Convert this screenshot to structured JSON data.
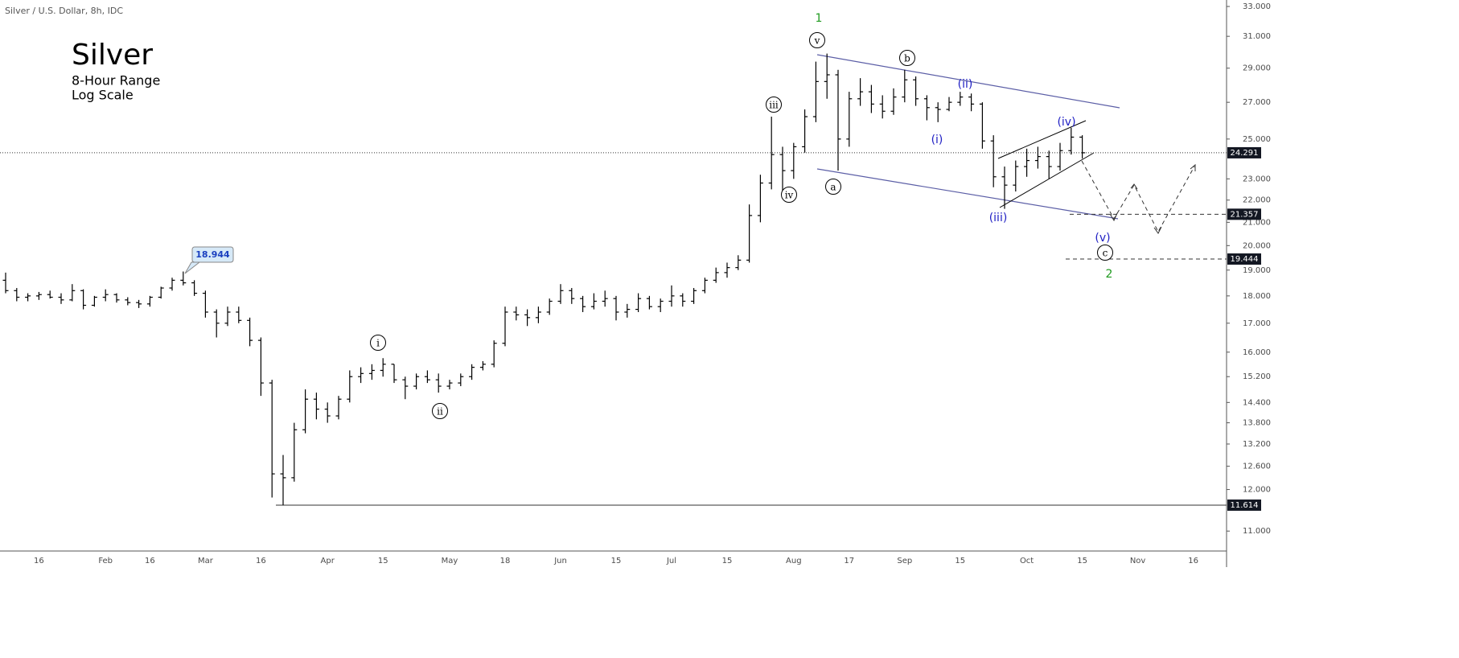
{
  "chart_data": {
    "type": "ohlc",
    "header": "Silver / U.S. Dollar, 8h, IDC",
    "title": "Silver",
    "subtitle": [
      "8-Hour Range",
      "Log Scale"
    ],
    "log_scale": true,
    "color": "#000000",
    "categories": [
      null,
      null,
      null,
      "16",
      null,
      null,
      null,
      null,
      null,
      "Feb",
      null,
      null,
      null,
      "16",
      null,
      null,
      null,
      null,
      "Mar",
      null,
      null,
      null,
      null,
      "16",
      null,
      null,
      null,
      null,
      null,
      "Apr",
      null,
      null,
      null,
      null,
      "15",
      null,
      null,
      null,
      null,
      null,
      "May",
      null,
      null,
      null,
      null,
      "18",
      null,
      null,
      null,
      null,
      "Jun",
      null,
      null,
      null,
      null,
      "15",
      null,
      null,
      null,
      null,
      "Jul",
      null,
      null,
      null,
      null,
      "15",
      null,
      null,
      null,
      null,
      null,
      "Aug",
      null,
      null,
      null,
      null,
      "17",
      null,
      null,
      null,
      null,
      "Sep",
      null,
      null,
      null,
      null,
      "15",
      null,
      null,
      null,
      null,
      null,
      "Oct",
      null,
      null,
      null,
      null,
      "15",
      null,
      null,
      null,
      null,
      "Nov",
      null,
      null,
      null,
      null,
      "16",
      null,
      null
    ],
    "open": [
      18.6,
      18.2,
      17.95,
      18.0,
      18.05,
      17.95,
      17.85,
      18.2,
      17.65,
      17.95,
      18.05,
      17.85,
      17.75,
      17.7,
      17.95,
      18.3,
      18.6,
      18.5,
      18.1,
      17.4,
      17.0,
      17.4,
      17.1,
      16.4,
      15.0,
      12.4,
      12.3,
      13.6,
      14.5,
      14.2,
      14.0,
      14.5,
      15.2,
      15.3,
      15.4,
      15.6,
      15.1,
      14.9,
      15.2,
      15.1,
      14.9,
      15.0,
      15.2,
      15.5,
      15.6,
      16.3,
      17.4,
      17.3,
      17.2,
      17.4,
      17.8,
      18.2,
      17.9,
      17.6,
      17.8,
      17.9,
      17.4,
      17.5,
      17.9,
      17.6,
      17.8,
      18.0,
      17.8,
      18.2,
      18.6,
      18.9,
      19.1,
      19.4,
      21.3,
      22.8,
      24.2,
      23.4,
      24.6,
      26.2,
      28.2,
      28.6,
      25.0,
      27.2,
      27.6,
      26.9,
      26.5,
      27.3,
      28.3,
      27.2,
      26.7,
      26.6,
      27.0,
      27.3,
      26.9,
      24.9,
      23.1,
      22.7,
      23.6,
      23.9,
      24.1,
      23.6,
      24.4,
      25.1,
      null,
      null,
      null,
      null,
      null,
      null,
      null,
      null,
      null,
      null,
      null,
      null
    ],
    "high": [
      18.9,
      18.3,
      18.1,
      18.15,
      18.2,
      18.1,
      18.45,
      18.25,
      18.0,
      18.25,
      18.1,
      17.95,
      17.85,
      18.0,
      18.35,
      18.7,
      18.944,
      18.6,
      18.2,
      17.5,
      17.6,
      17.6,
      17.2,
      16.5,
      15.1,
      12.9,
      13.8,
      14.8,
      14.7,
      14.4,
      14.6,
      15.4,
      15.5,
      15.6,
      15.8,
      15.6,
      15.2,
      15.3,
      15.4,
      15.3,
      15.1,
      15.3,
      15.6,
      15.7,
      16.4,
      17.6,
      17.6,
      17.5,
      17.6,
      17.9,
      18.45,
      18.3,
      18.0,
      18.1,
      18.2,
      18.0,
      17.7,
      18.1,
      18.0,
      17.9,
      18.4,
      18.1,
      18.3,
      18.7,
      19.1,
      19.3,
      19.6,
      21.8,
      23.2,
      26.2,
      24.6,
      24.8,
      26.6,
      29.4,
      29.9,
      28.9,
      27.6,
      28.4,
      28.0,
      27.4,
      27.8,
      28.9,
      28.5,
      27.4,
      27.0,
      27.3,
      27.6,
      27.5,
      27.0,
      25.2,
      23.6,
      23.9,
      24.5,
      24.6,
      24.4,
      24.8,
      25.6,
      25.2,
      null,
      null,
      null,
      null,
      null,
      null,
      null,
      null,
      null,
      null,
      null,
      null
    ],
    "low": [
      18.1,
      17.8,
      17.8,
      17.85,
      17.9,
      17.7,
      17.8,
      17.5,
      17.6,
      17.8,
      17.75,
      17.65,
      17.55,
      17.6,
      17.9,
      18.2,
      18.4,
      18.0,
      17.2,
      16.5,
      16.9,
      17.0,
      16.2,
      14.6,
      11.8,
      11.614,
      12.2,
      13.5,
      13.9,
      13.8,
      13.9,
      14.4,
      15.0,
      15.1,
      15.2,
      15.0,
      14.5,
      14.8,
      15.0,
      14.7,
      14.8,
      14.9,
      15.1,
      15.4,
      15.5,
      16.2,
      17.1,
      16.9,
      17.0,
      17.3,
      17.7,
      17.7,
      17.4,
      17.5,
      17.6,
      17.1,
      17.2,
      17.4,
      17.5,
      17.4,
      17.6,
      17.6,
      17.7,
      18.1,
      18.5,
      18.7,
      19.0,
      19.3,
      21.0,
      22.5,
      22.3,
      23.0,
      24.3,
      25.9,
      27.2,
      23.4,
      24.6,
      26.8,
      26.4,
      26.1,
      26.3,
      27.0,
      26.8,
      26.0,
      25.9,
      26.5,
      26.8,
      26.5,
      24.5,
      22.6,
      21.6,
      22.4,
      23.1,
      23.5,
      23.0,
      23.4,
      24.2,
      24.0,
      null,
      null,
      null,
      null,
      null,
      null,
      null,
      null,
      null,
      null,
      null,
      null
    ],
    "close": [
      18.2,
      17.95,
      18.0,
      18.05,
      17.95,
      17.85,
      18.2,
      17.65,
      17.95,
      18.05,
      17.85,
      17.75,
      17.7,
      17.95,
      18.3,
      18.6,
      18.5,
      18.1,
      17.4,
      17.0,
      17.4,
      17.1,
      16.4,
      15.0,
      12.4,
      12.3,
      13.6,
      14.5,
      14.2,
      14.0,
      14.5,
      15.2,
      15.3,
      15.4,
      15.6,
      15.1,
      14.9,
      15.2,
      15.1,
      14.9,
      15.0,
      15.2,
      15.5,
      15.6,
      16.3,
      17.4,
      17.3,
      17.2,
      17.4,
      17.8,
      18.2,
      17.9,
      17.6,
      17.8,
      17.9,
      17.4,
      17.5,
      17.9,
      17.6,
      17.8,
      18.0,
      17.8,
      18.2,
      18.6,
      18.9,
      19.1,
      19.4,
      21.3,
      22.8,
      24.2,
      23.4,
      24.6,
      26.2,
      28.2,
      28.6,
      25.0,
      27.2,
      27.6,
      26.9,
      26.5,
      27.3,
      28.3,
      27.2,
      26.7,
      26.6,
      27.0,
      27.3,
      26.9,
      24.9,
      23.1,
      22.7,
      23.6,
      23.9,
      24.1,
      23.6,
      24.4,
      25.1,
      24.291,
      null,
      null,
      null,
      null,
      null,
      null,
      null,
      null,
      null,
      null,
      null,
      null
    ],
    "ylim": [
      10.55,
      33.45
    ],
    "yticks": [
      {
        "value": 33,
        "label": "33.000"
      },
      {
        "value": 31,
        "label": "31.000"
      },
      {
        "value": 29,
        "label": "29.000"
      },
      {
        "value": 27,
        "label": "27.000"
      },
      {
        "value": 25,
        "label": "25.000"
      },
      {
        "value": 23,
        "label": "23.000"
      },
      {
        "value": 22,
        "label": "22.000"
      },
      {
        "value": 21,
        "label": "21.000"
      },
      {
        "value": 20,
        "label": "20.000"
      },
      {
        "value": 19,
        "label": "19.000"
      },
      {
        "value": 18,
        "label": "18.000"
      },
      {
        "value": 17,
        "label": "17.000"
      },
      {
        "value": 16,
        "label": "16.000"
      },
      {
        "value": 15.2,
        "label": "15.200"
      },
      {
        "value": 14.4,
        "label": "14.400"
      },
      {
        "value": 13.8,
        "label": "13.800"
      },
      {
        "value": 13.2,
        "label": "13.200"
      },
      {
        "value": 12.6,
        "label": "12.600"
      },
      {
        "value": 12,
        "label": "12.000"
      },
      {
        "value": 11,
        "label": "11.000"
      }
    ],
    "price_lines": [
      {
        "value": 24.291,
        "style": "dotted"
      },
      {
        "value": 21.357,
        "style": "dashed"
      },
      {
        "value": 19.444,
        "style": "dashed"
      },
      {
        "value": 11.614,
        "style": "solid"
      }
    ],
    "high_callout": 18.944,
    "annotations": [
      {
        "text": "1",
        "style": "green"
      },
      {
        "text": "v",
        "style": "circled"
      },
      {
        "text": "iii",
        "style": "circled"
      },
      {
        "text": "iv",
        "style": "circled"
      },
      {
        "text": "a",
        "style": "circled"
      },
      {
        "text": "b",
        "style": "circled"
      },
      {
        "text": "(ii)",
        "style": "blue"
      },
      {
        "text": "(i)",
        "style": "blue"
      },
      {
        "text": "(iii)",
        "style": "blue"
      },
      {
        "text": "(iv)",
        "style": "blue"
      },
      {
        "text": "(v)",
        "style": "blue"
      },
      {
        "text": "c",
        "style": "circled"
      },
      {
        "text": "2",
        "style": "green"
      },
      {
        "text": "i",
        "style": "circled"
      },
      {
        "text": "ii",
        "style": "circled"
      }
    ]
  }
}
